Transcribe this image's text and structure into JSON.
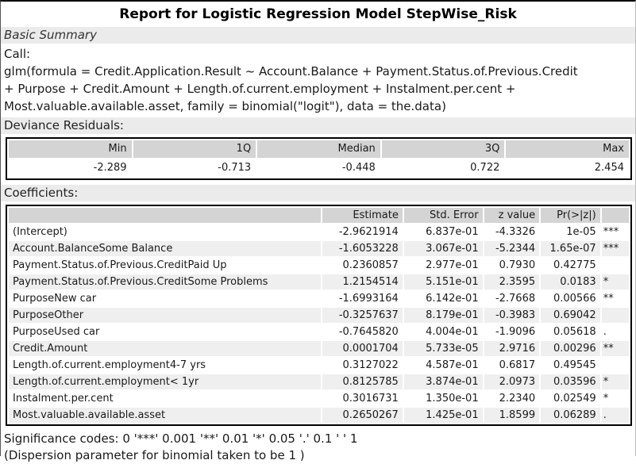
{
  "page": {
    "title": "Report for Logistic Regression Model StepWise_Risk",
    "section_basic_summary": "Basic Summary",
    "call_label": "Call:",
    "call_lines": [
      "glm(formula = Credit.Application.Result ~ Account.Balance + Payment.Status.of.Previous.Credit",
      "+ Purpose + Credit.Amount + Length.of.current.employment + Instalment.per.cent +",
      "Most.valuable.available.asset, family = binomial(\"logit\"), data = the.data)"
    ],
    "deviance_label": "Deviance Residuals:",
    "coefficients_label": "Coefficients:",
    "significance_codes": "Significance codes:  0 '***' 0.001 '**' 0.01 '*' 0.05 '.' 0.1 ' ' 1",
    "dispersion_note": "(Dispersion parameter for binomial taken to be 1 )"
  },
  "deviance_table": {
    "headers": [
      "Min",
      "1Q",
      "Median",
      "3Q",
      "Max"
    ],
    "values": [
      "-2.289",
      "-0.713",
      "-0.448",
      "0.722",
      "2.454"
    ]
  },
  "coefficients_table": {
    "headers": [
      "",
      "Estimate",
      "Std. Error",
      "z value",
      "Pr(>|z|)",
      ""
    ],
    "rows": [
      [
        "(Intercept)",
        "-2.9621914",
        "6.837e-01",
        "-4.3326",
        "1e-05",
        "***"
      ],
      [
        "Account.BalanceSome Balance",
        "-1.6053228",
        "3.067e-01",
        "-5.2344",
        "1.65e-07",
        "***"
      ],
      [
        "Payment.Status.of.Previous.CreditPaid Up",
        "0.2360857",
        "2.977e-01",
        "0.7930",
        "0.42775",
        ""
      ],
      [
        "Payment.Status.of.Previous.CreditSome Problems",
        "1.2154514",
        "5.151e-01",
        "2.3595",
        "0.0183",
        "*"
      ],
      [
        "PurposeNew car",
        "-1.6993164",
        "6.142e-01",
        "-2.7668",
        "0.00566",
        "**"
      ],
      [
        "PurposeOther",
        "-0.3257637",
        "8.179e-01",
        "-0.3983",
        "0.69042",
        ""
      ],
      [
        "PurposeUsed car",
        "-0.7645820",
        "4.004e-01",
        "-1.9096",
        "0.05618",
        "."
      ],
      [
        "Credit.Amount",
        "0.0001704",
        "5.733e-05",
        "2.9716",
        "0.00296",
        "**"
      ],
      [
        "Length.of.current.employment4-7 yrs",
        "0.3127022",
        "4.587e-01",
        "0.6817",
        "0.49545",
        ""
      ],
      [
        "Length.of.current.employment< 1yr",
        "0.8125785",
        "3.874e-01",
        "2.0973",
        "0.03596",
        "*"
      ],
      [
        "Instalment.per.cent",
        "0.3016731",
        "1.350e-01",
        "2.2340",
        "0.02549",
        "*"
      ],
      [
        "Most.valuable.available.asset",
        "0.2650267",
        "1.425e-01",
        "1.8599",
        "0.06289",
        "."
      ]
    ]
  },
  "colors": {
    "section_bar_bg": "#ebebeb",
    "table_header_bg": "#d4d4d4",
    "row_stripe_bg": "#efefef",
    "table_border": "#000000"
  }
}
